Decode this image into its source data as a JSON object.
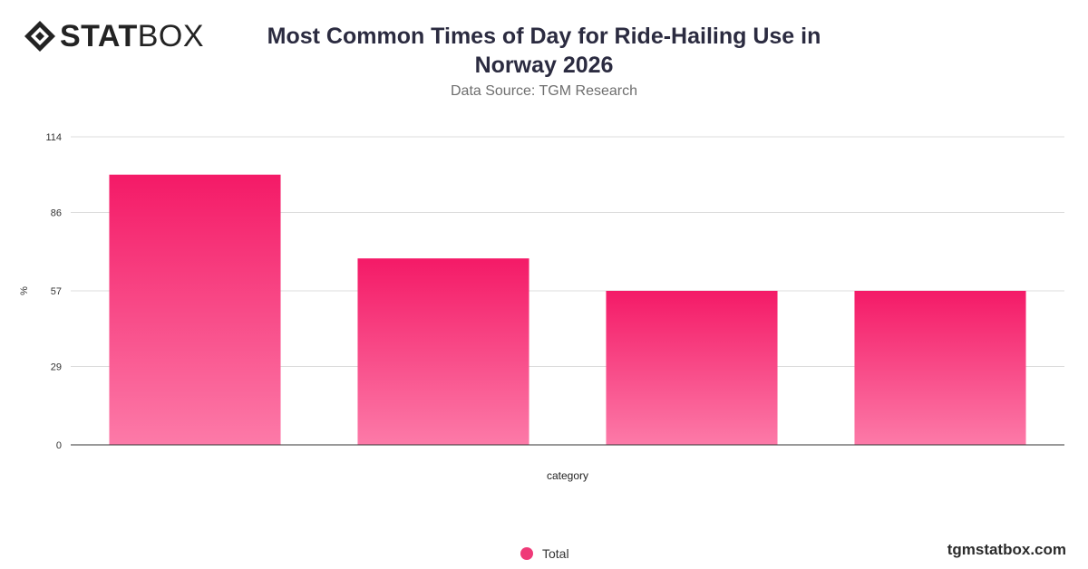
{
  "logo": {
    "bold": "STAT",
    "light": "BOX"
  },
  "colors": {
    "bar_top": "#f41a67",
    "bar_bottom": "#fc7aa8",
    "legend": "#ef3a78"
  },
  "footer": {
    "brand": "tgmstatbox.com"
  },
  "chart_data": {
    "type": "bar",
    "title": "Most Common Times of Day for Ride-Hailing Use in Norway 2026",
    "subtitle": "Data Source: TGM Research",
    "xlabel": "category",
    "ylabel": "%",
    "ylim": [
      0,
      114
    ],
    "yticks": [
      "114",
      "86",
      "57",
      "29",
      "0"
    ],
    "ytick_values": [
      114,
      86,
      57,
      29,
      0
    ],
    "categories": [
      "",
      "",
      "",
      ""
    ],
    "series": [
      {
        "name": "Total",
        "values": [
          100,
          69,
          57,
          57
        ]
      }
    ],
    "grid": true,
    "legend": "bottom-center"
  }
}
